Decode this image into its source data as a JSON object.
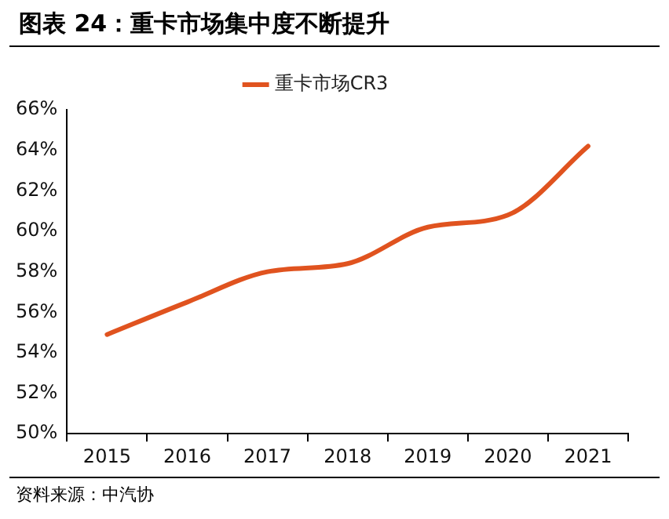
{
  "chart_data": {
    "type": "line",
    "title": "图表 24：重卡市场集中度不断提升",
    "annotations": [
      "资料来源：中汽协"
    ],
    "categories": [
      "2015",
      "2016",
      "2017",
      "2018",
      "2019",
      "2020",
      "2021"
    ],
    "series": [
      {
        "name": "重卡市场CR3",
        "color": "#e0531f",
        "values": [
          54.9,
          56.5,
          58.0,
          58.4,
          60.2,
          60.8,
          64.2
        ]
      }
    ],
    "ylim": [
      50,
      66
    ],
    "yticks": [
      {
        "value": 50,
        "label": "50%"
      },
      {
        "value": 52,
        "label": "52%"
      },
      {
        "value": 54,
        "label": "54%"
      },
      {
        "value": 56,
        "label": "56%"
      },
      {
        "value": 58,
        "label": "58%"
      },
      {
        "value": 60,
        "label": "60%"
      },
      {
        "value": 62,
        "label": "62%"
      },
      {
        "value": 64,
        "label": "64%"
      },
      {
        "value": 66,
        "label": "66%"
      }
    ],
    "grid": false,
    "legend": "top",
    "marker": "none",
    "line_style": "solid"
  }
}
